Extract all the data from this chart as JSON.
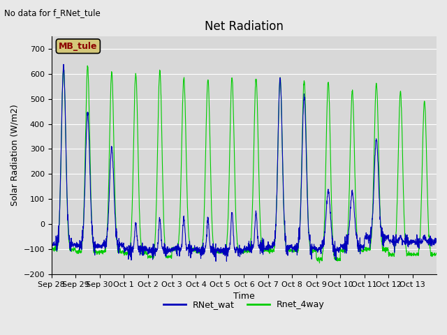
{
  "title": "Net Radiation",
  "xlabel": "Time",
  "ylabel": "Solar Radiation (W/m2)",
  "top_left_text": "No data for f_RNet_tule",
  "legend_box_text": "MB_tule",
  "legend_box_color": "#d4c87a",
  "legend_box_text_color": "#8b0000",
  "ylim": [
    -200,
    750
  ],
  "yticks": [
    -200,
    -100,
    0,
    100,
    200,
    300,
    400,
    500,
    600,
    700
  ],
  "background_color": "#e8e8e8",
  "plot_bg_color": "#d8d8d8",
  "line1_color": "#0000bb",
  "line2_color": "#00cc00",
  "line1_label": "RNet_wat",
  "line2_label": "Rnet_4way",
  "xtick_labels": [
    "Sep 28",
    "Sep 29",
    "Sep 30",
    "Oct 1",
    "Oct 2",
    "Oct 3",
    "Oct 4",
    "Oct 5",
    "Oct 6",
    "Oct 7",
    "Oct 8",
    "Oct 9",
    "Oct 10",
    "Oct 11",
    "Oct 12",
    "Oct 13"
  ],
  "n_days": 16,
  "day_peak_green": [
    628,
    628,
    605,
    600,
    613,
    583,
    580,
    583,
    583,
    583,
    573,
    568,
    530,
    563,
    528,
    488
  ],
  "day_peak_blue": [
    628,
    440,
    305,
    3,
    25,
    30,
    25,
    50,
    50,
    578,
    510,
    130,
    130,
    340,
    -50,
    -50
  ],
  "night_val_green": [
    -100,
    -110,
    -110,
    -115,
    -130,
    -100,
    -110,
    -110,
    -105,
    -105,
    -105,
    -140,
    -105,
    -100,
    -120,
    -120
  ],
  "night_val_blue": [
    -80,
    -85,
    -85,
    -100,
    -105,
    -100,
    -105,
    -105,
    -95,
    -90,
    -95,
    -100,
    -90,
    -55,
    -70,
    -70
  ]
}
